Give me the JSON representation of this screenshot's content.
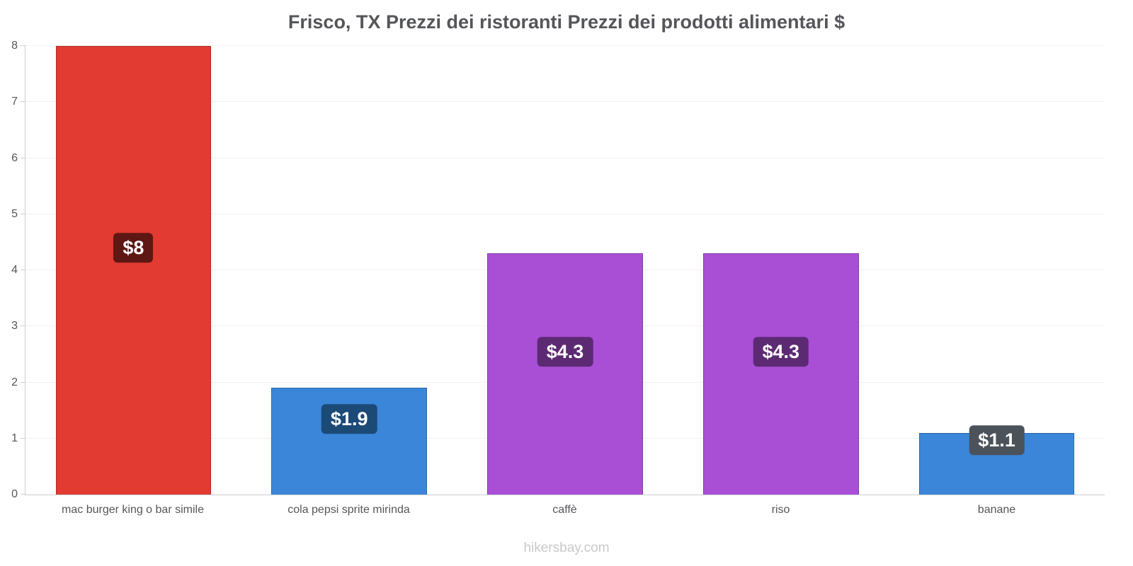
{
  "title": "Frisco, TX Prezzi dei ristoranti Prezzi dei prodotti alimentari $",
  "footer": "hikersbay.com",
  "chart_data": {
    "type": "bar",
    "title": "Frisco, TX Prezzi dei ristoranti Prezzi dei prodotti alimentari $",
    "categories": [
      "mac burger king o bar simile",
      "cola pepsi sprite mirinda",
      "caffè",
      "riso",
      "banane"
    ],
    "values": [
      8,
      1.9,
      4.3,
      4.3,
      1.1
    ],
    "labels": [
      "$8",
      "$1.9",
      "$4.3",
      "$4.3",
      "$1.1"
    ],
    "bar_colors": [
      "#e13b32",
      "#3b86d8",
      "#a94fd6",
      "#a94fd6",
      "#3b86d8"
    ],
    "label_bg_colors": [
      "#5e1713",
      "#1c4a77",
      "#5c2a73",
      "#5c2a73",
      "#4b525a"
    ],
    "label_centers": [
      4.4,
      1.35,
      2.55,
      2.55,
      0.97
    ],
    "xlabel": "",
    "ylabel": "",
    "ylim": [
      0,
      8
    ],
    "yticks": [
      0,
      1,
      2,
      3,
      4,
      5,
      6,
      7,
      8
    ],
    "grid": true,
    "legend": "none"
  }
}
